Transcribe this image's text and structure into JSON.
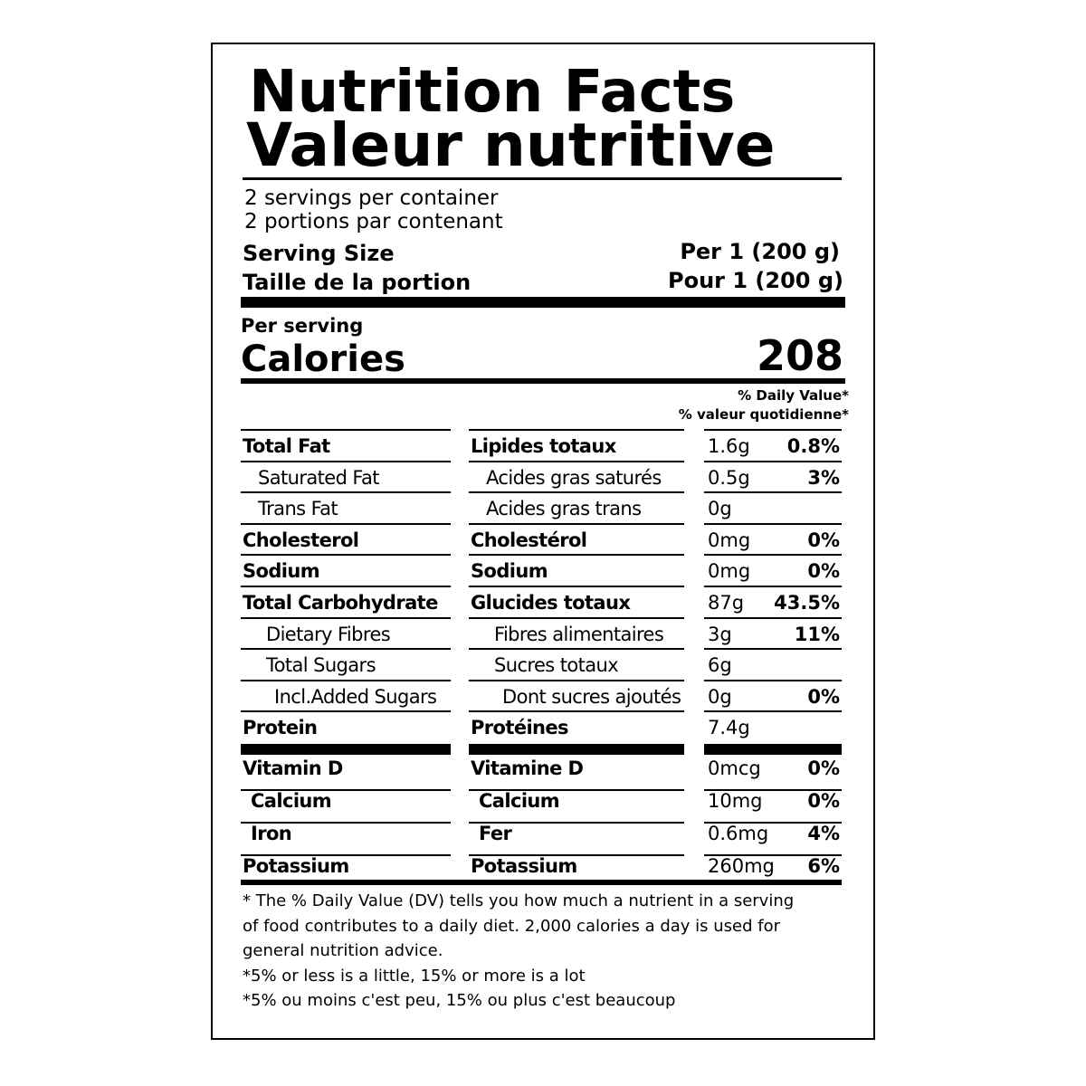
{
  "header": {
    "title_en": "Nutrition Facts",
    "title_fr": "Valeur nutritive"
  },
  "servings": {
    "en": "2 servings per container",
    "fr": "2 portions par contenant"
  },
  "serving_size": {
    "label_en": "Serving Size",
    "label_fr": "Taille de la portion",
    "value_en": "Per 1 (200 g)",
    "value_fr": "Pour 1 (200 g)"
  },
  "calories": {
    "per_serving": "Per serving",
    "label": "Calories",
    "value": 208
  },
  "dv_header": {
    "en": "% Daily Value*",
    "fr": "% valeur quotidienne*"
  },
  "nutrients": [
    {
      "en": "Total Fat",
      "fr": "Lipides totaux",
      "amount": "1.6g",
      "dv": "0.8%"
    },
    {
      "en": "Saturated Fat",
      "fr": "Acides gras saturés",
      "amount": "0.5g",
      "dv": "3%"
    },
    {
      "en": "Trans Fat",
      "fr": "Acides gras trans",
      "amount": "0g"
    },
    {
      "en": "Cholesterol",
      "fr": "Cholestérol",
      "amount": "0mg",
      "dv": "0%"
    },
    {
      "en": "Sodium",
      "fr": "Sodium",
      "amount": "0mg",
      "dv": "0%"
    },
    {
      "en": "Total Carbohydrate",
      "fr": "Glucides totaux",
      "amount": "87g",
      "dv": "43.5%"
    },
    {
      "en": "Dietary Fibres",
      "fr": "Fibres alimentaires",
      "amount": "3g",
      "dv": "11%"
    },
    {
      "en": "Total Sugars",
      "fr": "Sucres totaux",
      "amount": "6g"
    },
    {
      "en": "Incl.Added Sugars",
      "fr": "Dont sucres ajoutés",
      "amount": "0g",
      "dv": "0%"
    },
    {
      "en": "Protein",
      "fr": "Protéines",
      "amount": "7.4g"
    }
  ],
  "vitamins": [
    {
      "en": "Vitamin D",
      "fr": "Vitamine D",
      "amount": "0mcg",
      "dv": "0%"
    },
    {
      "en": "Calcium",
      "fr": "Calcium",
      "amount": "10mg",
      "dv": "0%"
    },
    {
      "en": "Iron",
      "fr": "Fer",
      "amount": "0.6mg",
      "dv": "4%"
    },
    {
      "en": "Potassium",
      "fr": "Potassium",
      "amount": "260mg",
      "dv": "6%"
    }
  ],
  "footnote": [
    "* The % Daily Value (DV) tells you how much a nutrient in a serving",
    "of food contributes to a daily diet. 2,000 calories a day is used for",
    "general nutrition advice.",
    "*5% or less is a little, 15% or more is a lot",
    "*5% ou moins c'est peu, 15% ou plus c'est beaucoup"
  ]
}
